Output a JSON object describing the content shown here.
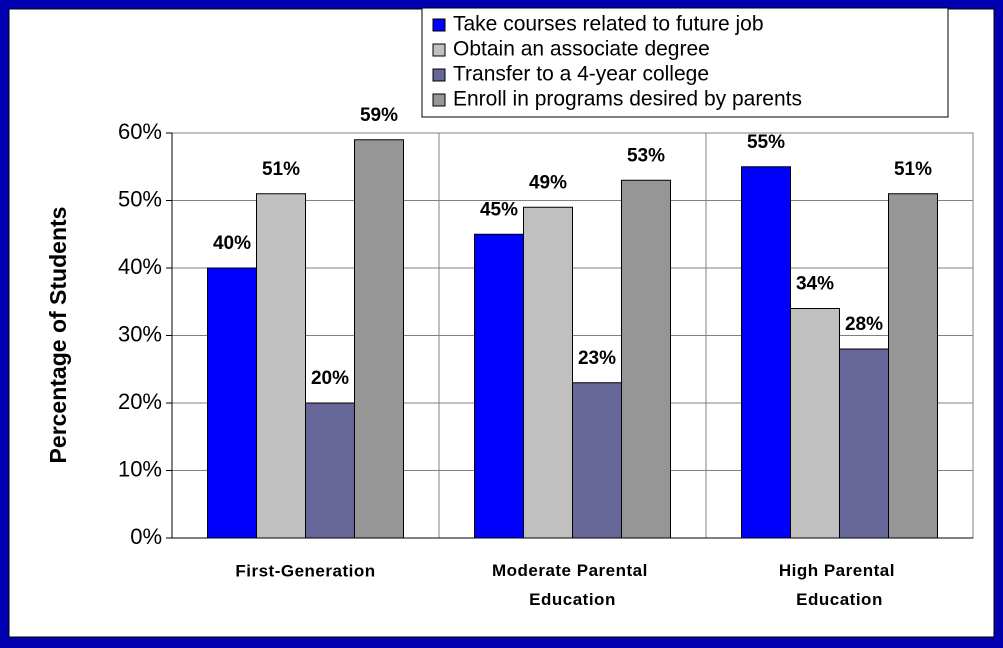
{
  "chart_data": {
    "type": "bar",
    "y_label": "Percentage of Students",
    "categories": [
      "First-Generation",
      "Moderate Parental Education",
      "High Parental Education"
    ],
    "series": [
      {
        "name": "Take courses related to future job",
        "color": "#0000ff",
        "values": [
          40,
          45,
          55
        ],
        "value_labels": [
          "40%",
          "45%",
          "55%"
        ]
      },
      {
        "name": "Obtain an associate degree",
        "color": "#c0c0c0",
        "values": [
          51,
          49,
          34
        ],
        "value_labels": [
          "51%",
          "49%",
          "34%"
        ]
      },
      {
        "name": "Transfer to a 4-year college",
        "color": "#666699",
        "values": [
          20,
          23,
          28
        ],
        "value_labels": [
          "20%",
          "23%",
          "28%"
        ]
      },
      {
        "name": "Enroll in programs desired by parents",
        "color": "#969696",
        "values": [
          59,
          53,
          51
        ],
        "value_labels": [
          "59%",
          "53%",
          "51%"
        ]
      }
    ],
    "ylim": [
      0,
      60
    ],
    "yticks": [
      {
        "value": 0,
        "label": "0%"
      },
      {
        "value": 10,
        "label": "10%"
      },
      {
        "value": 20,
        "label": "20%"
      },
      {
        "value": 30,
        "label": "30%"
      },
      {
        "value": 40,
        "label": "40%"
      },
      {
        "value": 50,
        "label": "50%"
      },
      {
        "value": 60,
        "label": "60%"
      }
    ],
    "grid": true,
    "legend": "top-right"
  }
}
